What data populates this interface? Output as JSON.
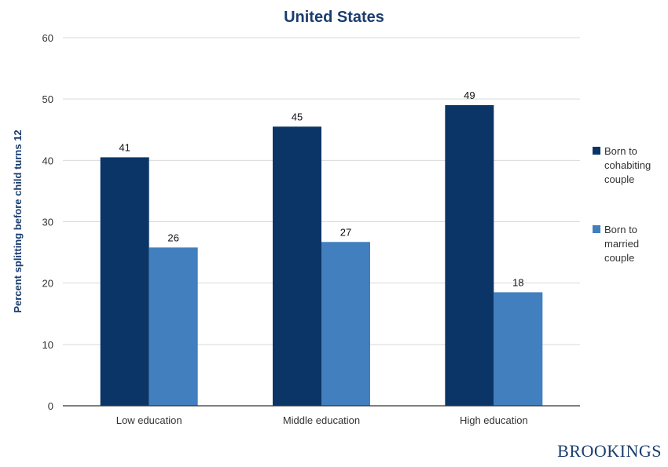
{
  "chart_data": {
    "type": "bar",
    "title": "United States",
    "xlabel": "",
    "ylabel": "Percent splitting before child turns 12",
    "ylim": [
      0,
      60
    ],
    "yticks": [
      0,
      10,
      20,
      30,
      40,
      50,
      60
    ],
    "grid": true,
    "legend_position": "right",
    "categories": [
      "Low education",
      "Middle education",
      "High education"
    ],
    "series": [
      {
        "name": "Born to cohabiting couple",
        "legend_lines": [
          "Born to",
          "cohabiting",
          "couple"
        ],
        "values": [
          40.5,
          45.5,
          49
        ],
        "labels": [
          "41",
          "45",
          "49"
        ],
        "color": "#0b3566"
      },
      {
        "name": "Born to married couple",
        "legend_lines": [
          "Born to",
          "married",
          "couple"
        ],
        "values": [
          25.8,
          26.7,
          18.5
        ],
        "labels": [
          "26",
          "27",
          "18"
        ],
        "color": "#427fbe"
      }
    ]
  },
  "brand": {
    "logo_text": "BROOKINGS",
    "color": "#1a3d6e"
  },
  "colors": {
    "title": "#1a3d6e",
    "axis_text": "#333333",
    "grid": "#d9d9d9",
    "axis_line": "#333333"
  }
}
